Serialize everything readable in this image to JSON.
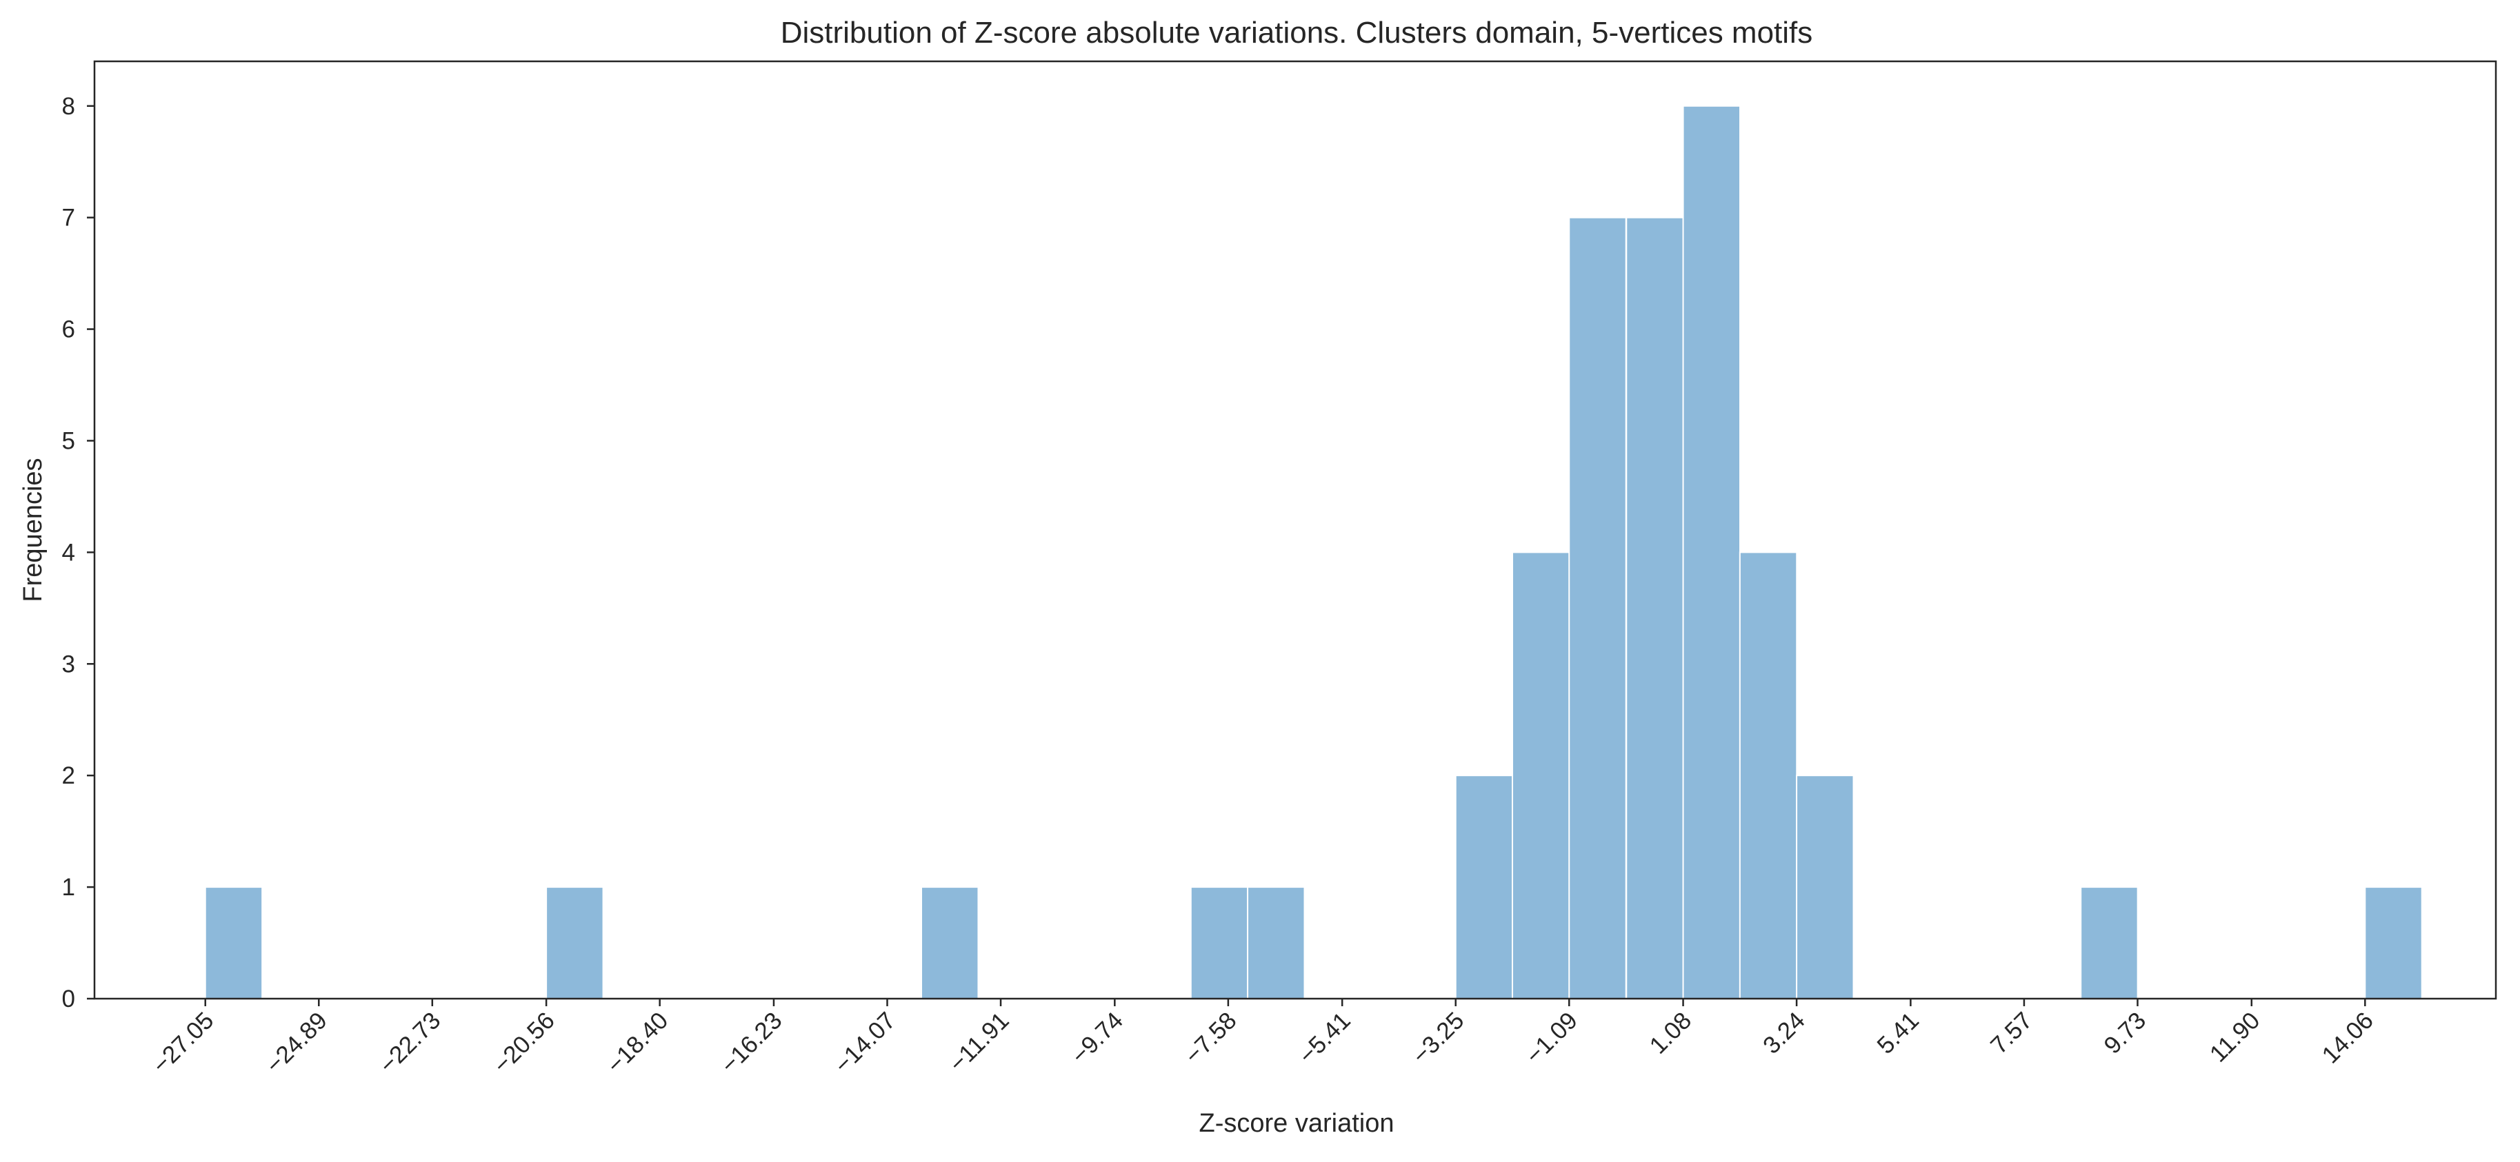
{
  "chart_data": {
    "type": "bar",
    "title": "Distribution of Z-score absolute variations. Clusters domain, 5-vertices motifs",
    "xlabel": "Z-score variation",
    "ylabel": "Frequencies",
    "xlim": [
      -29.16,
      16.55
    ],
    "ylim": [
      0,
      8.4
    ],
    "grid": false,
    "bin_width": 1.0822,
    "bins": [
      {
        "x0": -27.05,
        "count": 1
      },
      {
        "x0": -20.56,
        "count": 1
      },
      {
        "x0": -13.42,
        "count": 1
      },
      {
        "x0": -8.29,
        "count": 1
      },
      {
        "x0": -7.21,
        "count": 1
      },
      {
        "x0": -3.25,
        "count": 2
      },
      {
        "x0": -2.17,
        "count": 4
      },
      {
        "x0": -1.09,
        "count": 7
      },
      {
        "x0": 0.0,
        "count": 7
      },
      {
        "x0": 1.08,
        "count": 8
      },
      {
        "x0": 2.16,
        "count": 4
      },
      {
        "x0": 3.24,
        "count": 2
      },
      {
        "x0": 8.65,
        "count": 1
      },
      {
        "x0": 14.06,
        "count": 1
      }
    ],
    "x_ticks": [
      -27.05,
      -24.89,
      -22.73,
      -20.56,
      -18.4,
      -16.23,
      -14.07,
      -11.91,
      -9.74,
      -7.58,
      -5.41,
      -3.25,
      -1.09,
      1.08,
      3.24,
      5.41,
      7.57,
      9.73,
      11.9,
      14.06
    ],
    "x_tick_labels": [
      "−27.05",
      "−24.89",
      "−22.73",
      "−20.56",
      "−18.40",
      "−16.23",
      "−14.07",
      "−11.91",
      "−9.74",
      "−7.58",
      "−5.41",
      "−3.25",
      "−1.09",
      "1.08",
      "3.24",
      "5.41",
      "7.57",
      "9.73",
      "11.90",
      "14.06"
    ],
    "y_ticks": [
      0,
      1,
      2,
      3,
      4,
      5,
      6,
      7,
      8
    ],
    "y_tick_labels": [
      "0",
      "1",
      "2",
      "3",
      "4",
      "5",
      "6",
      "7",
      "8"
    ],
    "colors": {
      "bar_fill": "#8db9da",
      "bar_edge": "#ffffff",
      "axis": "#262626",
      "text": "#262626"
    }
  }
}
